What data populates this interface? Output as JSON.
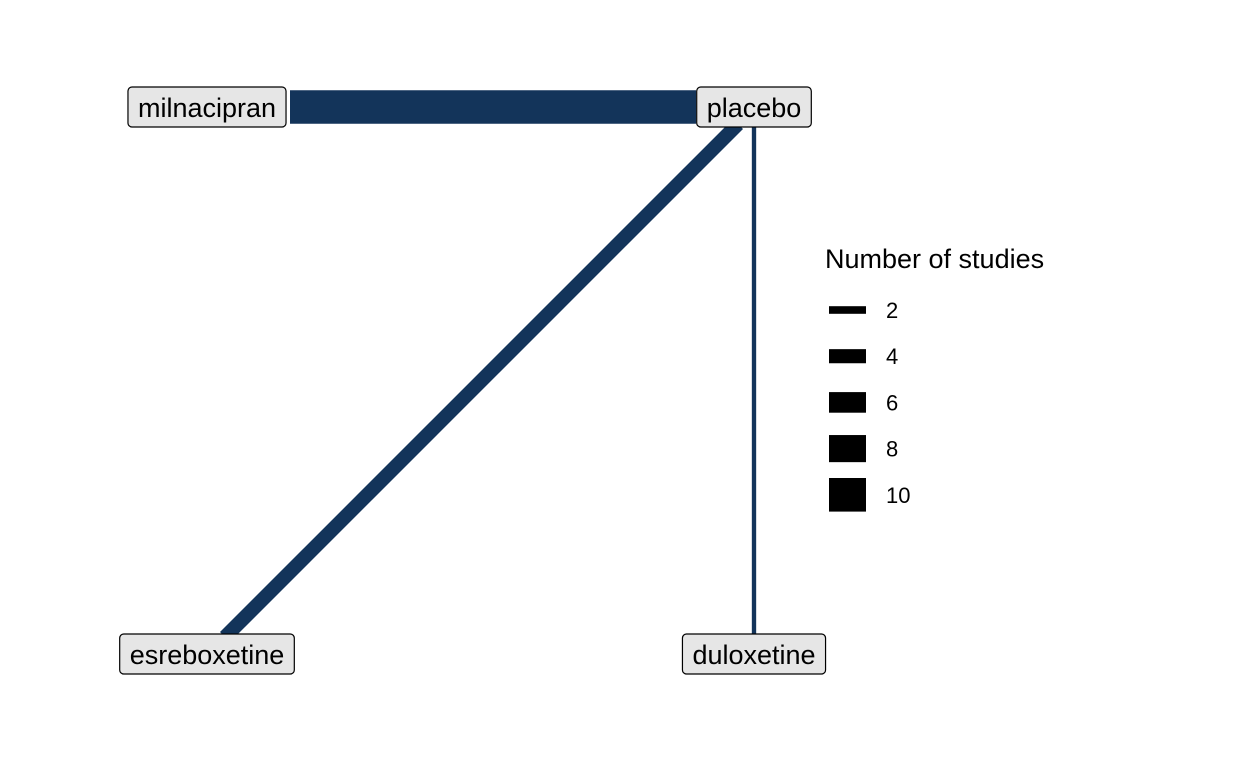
{
  "colors": {
    "edge": "#13345a",
    "node_fill": "#e6e6e6",
    "node_border": "#000000",
    "legend_key": "#000000"
  },
  "network": {
    "nodes": [
      {
        "id": "milnacipran",
        "label": "milnacipran"
      },
      {
        "id": "placebo",
        "label": "placebo"
      },
      {
        "id": "esreboxetine",
        "label": "esreboxetine"
      },
      {
        "id": "duloxetine",
        "label": "duloxetine"
      }
    ],
    "edges": [
      {
        "from": "milnacipran",
        "to": "placebo",
        "studies": 10
      },
      {
        "from": "esreboxetine",
        "to": "placebo",
        "studies": 4
      },
      {
        "from": "duloxetine",
        "to": "placebo",
        "studies": 1
      }
    ]
  },
  "legend": {
    "title": "Number of studies",
    "entries": [
      {
        "label": "2",
        "studies": 2
      },
      {
        "label": "4",
        "studies": 4
      },
      {
        "label": "6",
        "studies": 6
      },
      {
        "label": "8",
        "studies": 8
      },
      {
        "label": "10",
        "studies": 10
      }
    ]
  }
}
